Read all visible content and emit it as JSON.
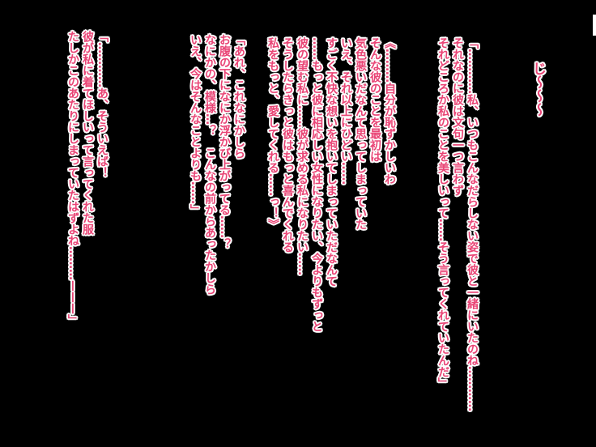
{
  "colors": {
    "background": "#000000",
    "text": "#e94576",
    "outline": "#ffffff"
  },
  "sfx": {
    "text": "じ～～～"
  },
  "blocks": [
    {
      "id": "monologue-reflection",
      "lines": [
        "「…………私、いつもこんなだらしない姿で彼と一緒にいたのね…………",
        "それなのに彼は文句一つ言わず",
        "それどころか私のことを美しいって……そう言ってくれていたんだ」"
      ]
    },
    {
      "id": "inner-thought",
      "lines": [
        "《………自分が恥ずかしいわ",
        "そんな彼のことを最初は",
        "気色悪いだなんて思ってしまっていた",
        "いえ、それ以上にひどい……",
        "すごく不快な想いを抱いてしまっていただなんて",
        "……もっと彼に相応しい女性になりたい、今よりもずっと",
        "彼の望む私に……彼が求める私になりたい……",
        "そうしたらきっと彼はもっと喜んでくれる",
        "私をもっと、愛してくれる……っ！》"
      ]
    },
    {
      "id": "monologue-notice",
      "lines": [
        "「あれ、これなにかしら",
        "お腹の下になにか浮かび上がってる……？",
        "なにかの、模様…？　こんなの前からあったかしら",
        "いえ、今はそんなことよりも……」"
      ]
    },
    {
      "id": "monologue-remember",
      "lines": [
        "「…………あ、そういえば！",
        "彼が私に着てほしいって言ってくれた服",
        "たしかこのあたりにしまっていたはずよね………———」"
      ]
    }
  ]
}
